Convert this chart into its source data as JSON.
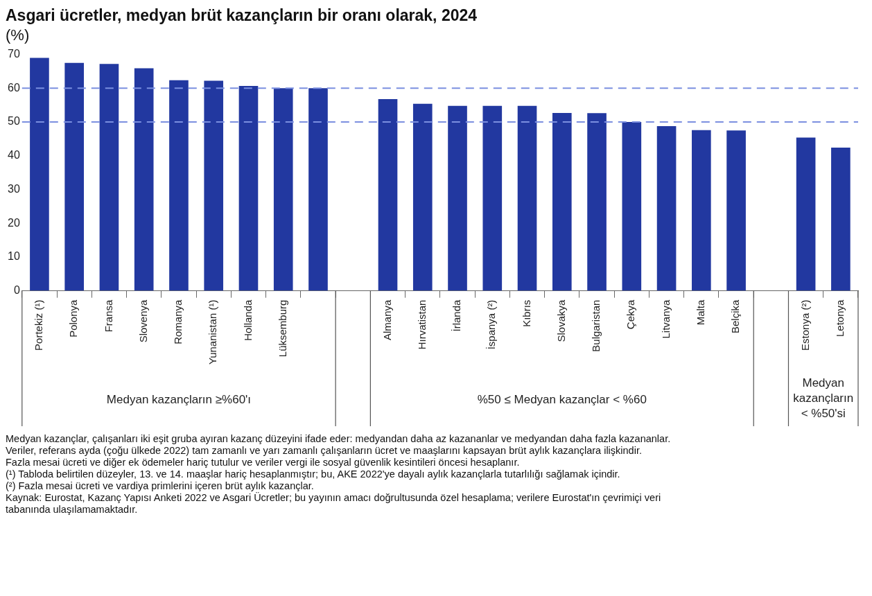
{
  "chart_data": {
    "type": "bar",
    "title": "Asgari ücretler, medyan brüt kazançların bir oranı olarak, 2024",
    "subtitle": "(%)",
    "categories": [
      "Portekiz (¹)",
      "Polonya",
      "Fransa",
      "Slovenya",
      "Romanya",
      "Yunanistan (¹)",
      "Hollanda",
      "Lüksemburg",
      null,
      null,
      "Almanya",
      "Hırvatistan",
      "İrlanda",
      "İspanya (²)",
      "Kıbrıs",
      "Slovakya",
      "Bulgaristan",
      "Çekya",
      "Litvanya",
      "Malta",
      "Belçika",
      null,
      "Estonya (²)",
      "Letonya"
    ],
    "values": [
      69.0,
      67.5,
      67.2,
      65.9,
      62.4,
      62.2,
      60.7,
      60.0,
      60.0,
      null,
      56.8,
      55.4,
      54.8,
      54.8,
      54.8,
      52.7,
      52.6,
      50.0,
      48.8,
      47.6,
      47.5,
      null,
      45.4,
      42.4
    ],
    "color": "#2238a0",
    "ylim": [
      0,
      70
    ],
    "yticks": [
      0,
      10,
      20,
      30,
      40,
      50,
      60,
      70
    ],
    "ref_lines": [
      {
        "axis": "y",
        "value": 60,
        "color": "#7b8fe0",
        "line_style": "dashed"
      },
      {
        "axis": "y",
        "value": 50,
        "color": "#7b8fe0",
        "line_style": "dashed"
      }
    ],
    "annotations": [
      "Medyan kazançların ≥%60'ı",
      "%50 ≤ Medyan kazançlar < %60",
      "Medyan kazançların < %50'si",
      "Medyan kazançlar, çalışanları iki eşit gruba ayıran kazanç düzeyini ifade eder: medyandan daha az kazananlar ve medyandan daha fazla kazananlar.",
      "Veriler, referans ayda (çoğu ülkede 2022) tam zamanlı ve yarı zamanlı çalışanların ücret ve maaşlarını kapsayan brüt aylık kazançlara ilişkindir.",
      "Fazla mesai ücreti ve diğer ek ödemeler hariç tutulur ve veriler vergi ile sosyal güvenlik kesintileri öncesi hesaplanır.",
      "(¹) Tabloda belirtilen düzeyler, 13. ve 14. maaşlar hariç hesaplanmıştır; bu, AKE 2022'ye dayalı aylık kazançlarla tutarlılığı sağlamak içindir.",
      "(²) Fazla mesai ücreti ve vardiya primlerini içeren brüt aylık kazançlar.",
      "Kaynak: Eurostat, Kazanç Yapısı Anketi 2022 ve Asgari Ücretler; bu yayının amacı doğrultusunda özel hesaplama; verilere Eurostat'ın çevrimiçi veri tabanında ulaşılamamaktadır."
    ]
  }
}
